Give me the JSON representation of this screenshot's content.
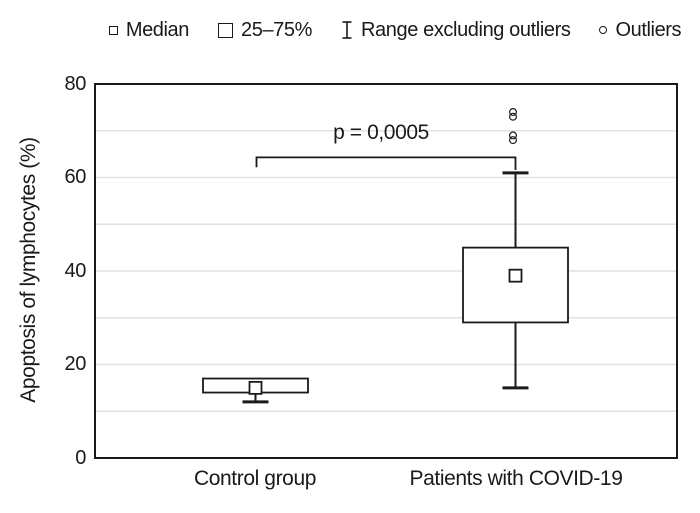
{
  "legend": {
    "items": [
      {
        "marker": "small-square",
        "label": "Median"
      },
      {
        "marker": "large-square",
        "label": "25–75%"
      },
      {
        "marker": "ibeam",
        "label": "Range excluding outliers"
      },
      {
        "marker": "circle",
        "label": "Outliers"
      }
    ]
  },
  "colors": {
    "stroke": "#1a1a1a",
    "grid": "#e2e2e2",
    "background": "#ffffff"
  },
  "chart_data": {
    "type": "boxplot",
    "title": "",
    "xlabel": "",
    "ylabel": "Apoptosis of lymphocytes (%)",
    "ylim": [
      0,
      80
    ],
    "yticks": [
      0,
      20,
      40,
      60,
      80
    ],
    "grid_step": 10,
    "grid": "horizontal-light",
    "legend_position": "top",
    "categories": [
      "Control group",
      "Patients with COVID-19"
    ],
    "series": [
      {
        "name": "Control group",
        "median": 15,
        "q1": 14,
        "q3": 17,
        "whisker_low": 12,
        "whisker_high": 17,
        "outliers": []
      },
      {
        "name": "Patients with COVID-19",
        "median": 39,
        "q1": 29,
        "q3": 45,
        "whisker_low": 15,
        "whisker_high": 61,
        "outliers": [
          74,
          73,
          69,
          68
        ]
      }
    ],
    "annotation": {
      "text": "p = 0,0005",
      "bracket_y_value": 64.3,
      "left_arm_to_value": 62.2,
      "right_arm_to_value": 61.6
    }
  }
}
